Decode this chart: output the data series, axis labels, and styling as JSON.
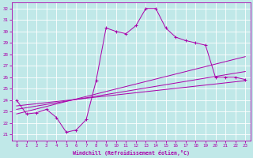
{
  "xlabel": "Windchill (Refroidissement éolien,°C)",
  "xlim": [
    -0.5,
    23.5
  ],
  "ylim": [
    20.5,
    32.5
  ],
  "yticks": [
    21,
    22,
    23,
    24,
    25,
    26,
    27,
    28,
    29,
    30,
    31,
    32
  ],
  "xticks": [
    0,
    1,
    2,
    3,
    4,
    5,
    6,
    7,
    8,
    9,
    10,
    11,
    12,
    13,
    14,
    15,
    16,
    17,
    18,
    19,
    20,
    21,
    22,
    23
  ],
  "bg_color": "#c0e8e8",
  "grid_color": "#ffffff",
  "line_color": "#aa00aa",
  "y_main": [
    24.0,
    22.8,
    22.9,
    23.2,
    22.5,
    21.2,
    21.4,
    22.3,
    25.7,
    30.3,
    30.0,
    29.8,
    30.5,
    32.0,
    32.0,
    30.3,
    29.5,
    29.2,
    29.0,
    28.8,
    26.0,
    26.0,
    26.0,
    25.8
  ],
  "trend_lines": [
    [
      [
        0,
        23
      ],
      [
        23.5,
        25.7
      ]
    ],
    [
      [
        0,
        23
      ],
      [
        23.2,
        26.5
      ]
    ],
    [
      [
        0,
        23
      ],
      [
        22.8,
        27.8
      ]
    ]
  ]
}
